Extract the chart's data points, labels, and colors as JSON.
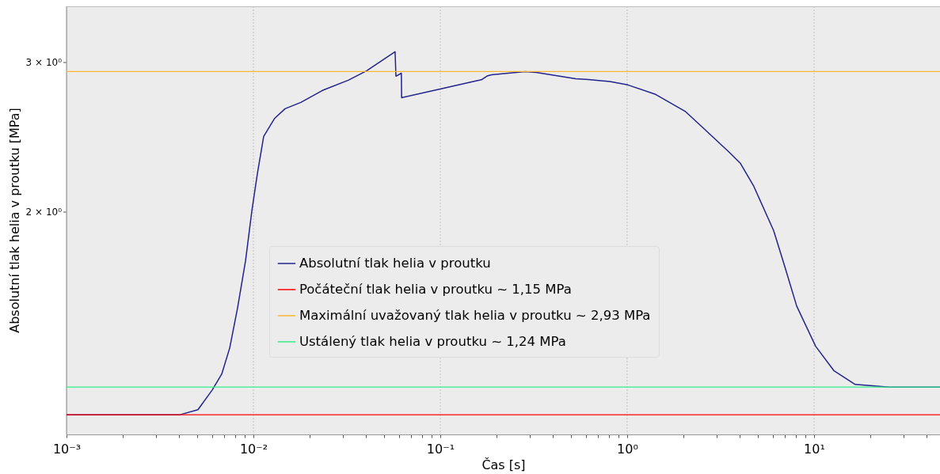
{
  "chart_data": {
    "type": "line",
    "xlabel": "Čas [s]",
    "ylabel": "Absolutní tlak helia v proutku [MPa]",
    "log": "xy",
    "grid": "x",
    "legend": "center",
    "marker": "none",
    "line_style": "solid",
    "xlim": [
      0.001,
      47.2
    ],
    "ylim": [
      1.09,
      3.5
    ],
    "xticks": [
      {
        "value": 0.001,
        "label": "10⁻³"
      },
      {
        "value": 0.002,
        "label": null
      },
      {
        "value": 0.003,
        "label": null
      },
      {
        "value": 0.004,
        "label": null
      },
      {
        "value": 0.005,
        "label": null
      },
      {
        "value": 0.006,
        "label": null
      },
      {
        "value": 0.007,
        "label": null
      },
      {
        "value": 0.008,
        "label": null
      },
      {
        "value": 0.009,
        "label": null
      },
      {
        "value": 0.01,
        "label": "10⁻²"
      },
      {
        "value": 0.02,
        "label": null
      },
      {
        "value": 0.03,
        "label": null
      },
      {
        "value": 0.04,
        "label": null
      },
      {
        "value": 0.05,
        "label": null
      },
      {
        "value": 0.06,
        "label": null
      },
      {
        "value": 0.07,
        "label": null
      },
      {
        "value": 0.08,
        "label": null
      },
      {
        "value": 0.09,
        "label": null
      },
      {
        "value": 0.1,
        "label": "10⁻¹"
      },
      {
        "value": 0.2,
        "label": null
      },
      {
        "value": 0.3,
        "label": null
      },
      {
        "value": 0.4,
        "label": null
      },
      {
        "value": 0.5,
        "label": null
      },
      {
        "value": 0.6,
        "label": null
      },
      {
        "value": 0.7,
        "label": null
      },
      {
        "value": 0.8,
        "label": null
      },
      {
        "value": 0.9,
        "label": null
      },
      {
        "value": 1,
        "label": "10⁰"
      },
      {
        "value": 2,
        "label": null
      },
      {
        "value": 3,
        "label": null
      },
      {
        "value": 4,
        "label": null
      },
      {
        "value": 5,
        "label": null
      },
      {
        "value": 6,
        "label": null
      },
      {
        "value": 7,
        "label": null
      },
      {
        "value": 8,
        "label": null
      },
      {
        "value": 9,
        "label": null
      },
      {
        "value": 10,
        "label": "10¹"
      },
      {
        "value": 20,
        "label": null
      },
      {
        "value": 30,
        "label": null
      },
      {
        "value": 40,
        "label": null
      }
    ],
    "yticks": [
      {
        "value": 2,
        "label": "2 × 10⁰"
      },
      {
        "value": 3,
        "label": "3 × 10⁰"
      }
    ],
    "series": [
      {
        "name": "Absolutní tlak helia v proutku",
        "color": "#23238e",
        "x": [
          0.001,
          0.00404,
          0.00505,
          0.00603,
          0.00677,
          0.00747,
          0.00822,
          0.00908,
          0.00981,
          0.0105,
          0.01135,
          0.013,
          0.01478,
          0.01795,
          0.0234,
          0.0322,
          0.0404,
          0.0573,
          0.0579,
          0.0619,
          0.0621,
          0.1009,
          0.1535,
          0.166,
          0.178,
          0.188,
          0.284,
          0.3256,
          0.53,
          0.619,
          0.807,
          1.01,
          1.42,
          2.04,
          2.6,
          3.52,
          4.04,
          4.76,
          6.08,
          6.97,
          8.07,
          10.2,
          12.8,
          16.6,
          25.3,
          47.2
        ],
        "values": [
          1.15,
          1.15,
          1.166,
          1.231,
          1.285,
          1.38,
          1.537,
          1.75,
          2.004,
          2.218,
          2.455,
          2.58,
          2.648,
          2.694,
          2.783,
          2.862,
          2.937,
          3.093,
          2.893,
          2.917,
          2.729,
          2.795,
          2.855,
          2.865,
          2.895,
          2.905,
          2.93,
          2.924,
          2.873,
          2.867,
          2.852,
          2.825,
          2.753,
          2.63,
          2.503,
          2.351,
          2.281,
          2.143,
          1.899,
          1.723,
          1.547,
          1.386,
          1.296,
          1.249,
          1.24,
          1.24
        ]
      }
    ],
    "ref_lines": [
      {
        "axis": "y",
        "value": 1.15,
        "label": "Počáteční tlak helia v proutku ~ 1,15 MPa",
        "color": "#ff0000"
      },
      {
        "axis": "y",
        "value": 2.93,
        "label": "Maximální uvažovaný tlak helia v proutku ~ 2,93 MPa",
        "color": "#ffb732"
      },
      {
        "axis": "y",
        "value": 1.24,
        "label": "Ustálený tlak helia v proutku ~ 1,24 MPa",
        "color": "#33ee88"
      }
    ]
  }
}
